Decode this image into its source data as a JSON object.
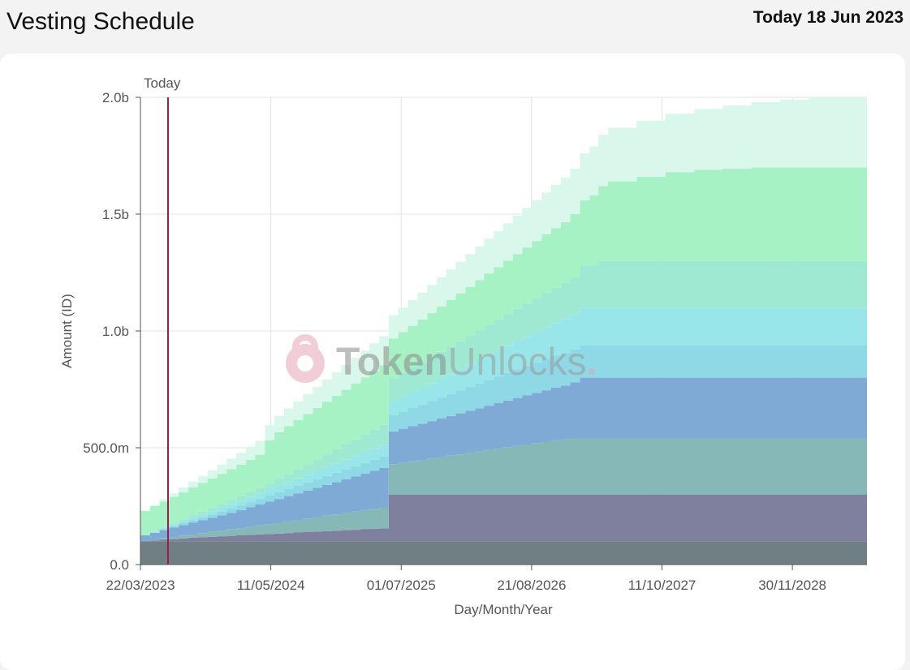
{
  "header": {
    "title": "Vesting Schedule",
    "date_label": "Today 18 Jun 2023"
  },
  "watermark": {
    "part1": "Token",
    "part2": "Unlocks",
    "dot": "."
  },
  "colors": {
    "today_line": "#9b1b4a",
    "grid": "#e2e2e2",
    "layers": [
      "#6f7f84",
      "#7f7f9e",
      "#86b8b8",
      "#80aad6",
      "#8fd8e6",
      "#98e6ea",
      "#9fe9d2",
      "#a6f2c4",
      "#d9f7ea"
    ]
  },
  "chart_data": {
    "type": "area",
    "title": "",
    "xlabel": "Day/Month/Year",
    "ylabel": "Amount (ID)",
    "x_ticks": [
      "22/03/2023",
      "11/05/2024",
      "01/07/2025",
      "21/08/2026",
      "11/10/2027",
      "30/11/2028"
    ],
    "y_ticks": [
      "0.0",
      "500.0m",
      "1.0b",
      "1.5b",
      "2.0b"
    ],
    "ylim": [
      0,
      2000000000
    ],
    "xlim": [
      "22/03/2023",
      "26/07/2029"
    ],
    "today": {
      "date": "18/06/2023",
      "label": "Today"
    },
    "grid": true,
    "stepped": true,
    "x": [
      "22/03/2023",
      "22/04/2023",
      "22/05/2023",
      "22/06/2023",
      "22/07/2023",
      "22/08/2023",
      "22/09/2023",
      "22/10/2023",
      "22/11/2023",
      "22/12/2023",
      "22/01/2024",
      "22/02/2024",
      "22/03/2024",
      "22/04/2024",
      "22/05/2024",
      "22/06/2024",
      "22/07/2024",
      "22/08/2024",
      "22/09/2024",
      "22/10/2024",
      "22/11/2024",
      "22/12/2024",
      "22/01/2025",
      "22/02/2025",
      "22/03/2025",
      "22/04/2025",
      "22/05/2025",
      "22/06/2025",
      "22/07/2025",
      "22/08/2025",
      "22/09/2025",
      "22/10/2025",
      "22/11/2025",
      "22/12/2025",
      "22/01/2026",
      "22/02/2026",
      "22/03/2026",
      "22/04/2026",
      "22/05/2026",
      "22/06/2026",
      "22/07/2026",
      "22/08/2026",
      "22/09/2026",
      "22/10/2026",
      "22/11/2026",
      "22/12/2026",
      "22/01/2027",
      "22/02/2027",
      "22/03/2027",
      "22/04/2027",
      "22/07/2027",
      "22/10/2027",
      "22/01/2028",
      "22/04/2028",
      "22/07/2028",
      "22/10/2028",
      "22/01/2029",
      "22/04/2029"
    ],
    "series": [
      {
        "values": [
          100000000,
          100000000,
          100000000,
          100000000,
          100000000,
          100000000,
          100000000,
          100000000,
          100000000,
          100000000,
          100000000,
          100000000,
          100000000,
          100000000,
          100000000,
          100000000,
          100000000,
          100000000,
          100000000,
          100000000,
          100000000,
          100000000,
          100000000,
          100000000,
          100000000,
          100000000,
          100000000,
          100000000,
          100000000,
          100000000,
          100000000,
          100000000,
          100000000,
          100000000,
          100000000,
          100000000,
          100000000,
          100000000,
          100000000,
          100000000,
          100000000,
          100000000,
          100000000,
          100000000,
          100000000,
          100000000,
          100000000,
          100000000,
          100000000,
          100000000,
          100000000,
          100000000,
          100000000,
          100000000,
          100000000,
          100000000,
          100000000,
          100000000
        ]
      },
      {
        "values": [
          0,
          3000000,
          6000000,
          9000000,
          12000000,
          15000000,
          17000000,
          19000000,
          21000000,
          23000000,
          25000000,
          27000000,
          29000000,
          31000000,
          33000000,
          35000000,
          37000000,
          39000000,
          41000000,
          43000000,
          45000000,
          47000000,
          49000000,
          51000000,
          53000000,
          55000000,
          200000000,
          200000000,
          200000000,
          200000000,
          200000000,
          200000000,
          200000000,
          200000000,
          200000000,
          200000000,
          200000000,
          200000000,
          200000000,
          200000000,
          200000000,
          200000000,
          200000000,
          200000000,
          200000000,
          200000000,
          200000000,
          200000000,
          200000000,
          200000000,
          200000000,
          200000000,
          200000000,
          200000000,
          200000000,
          200000000,
          200000000,
          200000000
        ]
      },
      {
        "values": [
          0,
          3000000,
          6000000,
          9000000,
          12000000,
          15000000,
          18000000,
          21000000,
          24000000,
          27000000,
          30000000,
          34000000,
          38000000,
          42000000,
          46000000,
          50000000,
          54000000,
          58000000,
          62000000,
          66000000,
          70000000,
          74000000,
          78000000,
          82000000,
          86000000,
          90000000,
          130000000,
          136000000,
          142000000,
          148000000,
          154000000,
          160000000,
          166000000,
          172000000,
          178000000,
          184000000,
          190000000,
          196000000,
          202000000,
          208000000,
          214000000,
          220000000,
          226000000,
          232000000,
          236000000,
          240000000,
          240000000,
          240000000,
          240000000,
          240000000,
          240000000,
          240000000,
          240000000,
          240000000,
          240000000,
          240000000,
          240000000,
          240000000
        ]
      },
      {
        "values": [
          25000000,
          30000000,
          35000000,
          40000000,
          45000000,
          50000000,
          55000000,
          60000000,
          66000000,
          72000000,
          78000000,
          84000000,
          90000000,
          96000000,
          102000000,
          108000000,
          114000000,
          120000000,
          126000000,
          132000000,
          138000000,
          144000000,
          150000000,
          156000000,
          162000000,
          168000000,
          140000000,
          145000000,
          150000000,
          155000000,
          160000000,
          165000000,
          170000000,
          175000000,
          180000000,
          185000000,
          190000000,
          195000000,
          200000000,
          205000000,
          210000000,
          215000000,
          220000000,
          225000000,
          230000000,
          240000000,
          260000000,
          260000000,
          260000000,
          260000000,
          260000000,
          260000000,
          260000000,
          260000000,
          260000000,
          260000000,
          260000000,
          260000000
        ]
      },
      {
        "values": [
          0,
          2000000,
          4000000,
          6000000,
          8000000,
          10000000,
          12000000,
          14000000,
          16000000,
          18000000,
          20000000,
          22000000,
          24000000,
          26000000,
          28000000,
          30000000,
          32000000,
          34000000,
          36000000,
          38000000,
          40000000,
          42000000,
          44000000,
          46000000,
          48000000,
          50000000,
          70000000,
          74000000,
          78000000,
          82000000,
          86000000,
          90000000,
          94000000,
          98000000,
          102000000,
          106000000,
          110000000,
          114000000,
          118000000,
          122000000,
          126000000,
          130000000,
          134000000,
          137000000,
          140000000,
          140000000,
          140000000,
          140000000,
          140000000,
          140000000,
          140000000,
          140000000,
          140000000,
          140000000,
          140000000,
          140000000,
          140000000,
          140000000
        ]
      },
      {
        "values": [
          0,
          2000000,
          4000000,
          6000000,
          8000000,
          10000000,
          12000000,
          14000000,
          16000000,
          18000000,
          20000000,
          22000000,
          24000000,
          26000000,
          28000000,
          30000000,
          32000000,
          34000000,
          36000000,
          38000000,
          40000000,
          42000000,
          44000000,
          46000000,
          48000000,
          50000000,
          58000000,
          62000000,
          66000000,
          70000000,
          75000000,
          80000000,
          85000000,
          90000000,
          95000000,
          100000000,
          105000000,
          110000000,
          115000000,
          120000000,
          125000000,
          130000000,
          135000000,
          140000000,
          145000000,
          150000000,
          160000000,
          160000000,
          160000000,
          160000000,
          160000000,
          160000000,
          160000000,
          160000000,
          160000000,
          160000000,
          160000000,
          160000000
        ]
      },
      {
        "values": [
          0,
          2000000,
          4000000,
          6000000,
          8000000,
          10000000,
          12000000,
          14000000,
          16000000,
          18000000,
          20000000,
          22000000,
          24000000,
          26000000,
          30000000,
          35000000,
          40000000,
          45000000,
          50000000,
          55000000,
          60000000,
          65000000,
          70000000,
          75000000,
          80000000,
          85000000,
          100000000,
          103000000,
          106000000,
          109000000,
          112000000,
          115000000,
          118000000,
          121000000,
          124000000,
          127000000,
          130000000,
          133000000,
          136000000,
          139000000,
          142000000,
          145000000,
          148000000,
          151000000,
          155000000,
          160000000,
          180000000,
          180000000,
          200000000,
          200000000,
          200000000,
          200000000,
          200000000,
          200000000,
          200000000,
          200000000,
          200000000,
          200000000
        ]
      },
      {
        "values": [
          105000000,
          108000000,
          111000000,
          114000000,
          117000000,
          120000000,
          123000000,
          126000000,
          129000000,
          132000000,
          135000000,
          138000000,
          141000000,
          185000000,
          200000000,
          205000000,
          210000000,
          215000000,
          220000000,
          225000000,
          230000000,
          235000000,
          240000000,
          245000000,
          250000000,
          255000000,
          170000000,
          175000000,
          180000000,
          185000000,
          190000000,
          195000000,
          200000000,
          205000000,
          210000000,
          215000000,
          220000000,
          225000000,
          230000000,
          235000000,
          240000000,
          245000000,
          250000000,
          255000000,
          260000000,
          270000000,
          280000000,
          300000000,
          320000000,
          340000000,
          360000000,
          380000000,
          390000000,
          395000000,
          400000000,
          400000000,
          400000000,
          400000000
        ]
      },
      {
        "values": [
          0,
          5000000,
          10000000,
          15000000,
          20000000,
          25000000,
          30000000,
          35000000,
          40000000,
          45000000,
          50000000,
          55000000,
          60000000,
          65000000,
          70000000,
          75000000,
          80000000,
          85000000,
          90000000,
          95000000,
          100000000,
          105000000,
          110000000,
          115000000,
          120000000,
          125000000,
          100000000,
          105000000,
          110000000,
          115000000,
          120000000,
          125000000,
          130000000,
          135000000,
          140000000,
          145000000,
          150000000,
          155000000,
          160000000,
          165000000,
          170000000,
          175000000,
          180000000,
          185000000,
          190000000,
          195000000,
          200000000,
          210000000,
          220000000,
          230000000,
          240000000,
          250000000,
          260000000,
          270000000,
          280000000,
          290000000,
          300000000,
          300000000
        ]
      }
    ]
  }
}
